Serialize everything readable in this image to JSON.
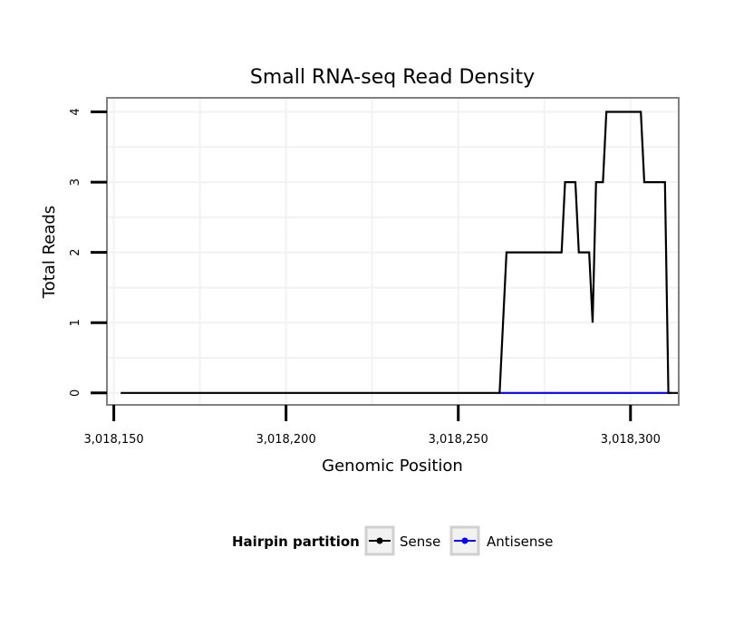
{
  "chart_data": {
    "type": "line",
    "title": "Small RNA-seq Read Density",
    "xlabel": "Genomic Position",
    "ylabel": "Total Reads",
    "xlim": [
      3018148,
      3018314
    ],
    "ylim": [
      -0.17,
      4.2
    ],
    "x_ticks": [
      3018150,
      3018200,
      3018250,
      3018300
    ],
    "x_tick_labels": [
      "3,018,150",
      "3,018,200",
      "3,018,250",
      "3,018,300"
    ],
    "y_ticks": [
      0,
      1,
      2,
      3,
      4
    ],
    "y_tick_labels": [
      "0",
      "1",
      "2",
      "3",
      "4"
    ],
    "grid": true,
    "legend": {
      "title": "Hairpin partition",
      "position": "bottom"
    },
    "series": [
      {
        "name": "Sense",
        "color": "#000000",
        "points": [
          [
            3018152,
            0
          ],
          [
            3018262,
            0
          ],
          [
            3018264,
            2
          ],
          [
            3018280,
            2
          ],
          [
            3018281,
            3
          ],
          [
            3018284,
            3
          ],
          [
            3018285,
            2
          ],
          [
            3018288,
            2
          ],
          [
            3018289,
            1
          ],
          [
            3018290,
            3
          ],
          [
            3018292,
            3
          ],
          [
            3018293,
            4
          ],
          [
            3018303,
            4
          ],
          [
            3018304,
            3
          ],
          [
            3018310,
            3
          ],
          [
            3018311,
            0
          ],
          [
            3018314,
            0
          ]
        ]
      },
      {
        "name": "Antisense",
        "color": "#0000ff",
        "points": [
          [
            3018262,
            0
          ],
          [
            3018312,
            0
          ]
        ]
      }
    ]
  }
}
